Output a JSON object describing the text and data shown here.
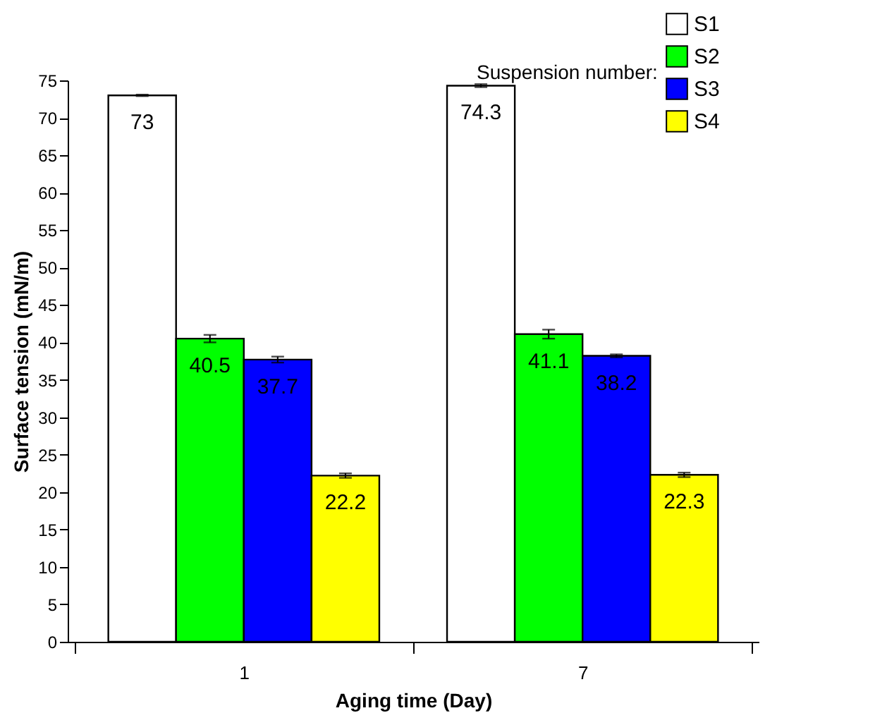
{
  "chart_data": {
    "type": "bar",
    "xlabel": "Aging time (Day)",
    "ylabel": "Surface tension (mN/m)",
    "legend_title": "Suspension number:",
    "legend": "top right",
    "data_labels": true,
    "categories": [
      "1",
      "7"
    ],
    "series": [
      {
        "name": "S1",
        "color": "#ffffff",
        "values": [
          73,
          74.3
        ],
        "errors": [
          0.1,
          0.2
        ]
      },
      {
        "name": "S2",
        "color": "#00ff00",
        "values": [
          40.5,
          41.1
        ],
        "errors": [
          0.5,
          0.6
        ]
      },
      {
        "name": "S3",
        "color": "#0000ff",
        "values": [
          37.7,
          38.2
        ],
        "errors": [
          0.4,
          0.2
        ]
      },
      {
        "name": "S4",
        "color": "#ffff00",
        "values": [
          22.2,
          22.3
        ],
        "errors": [
          0.3,
          0.3
        ]
      }
    ],
    "ylim": [
      0,
      75
    ],
    "yticks": [
      0,
      5,
      10,
      15,
      20,
      25,
      30,
      35,
      40,
      45,
      50,
      55,
      60,
      65,
      70,
      75
    ]
  }
}
